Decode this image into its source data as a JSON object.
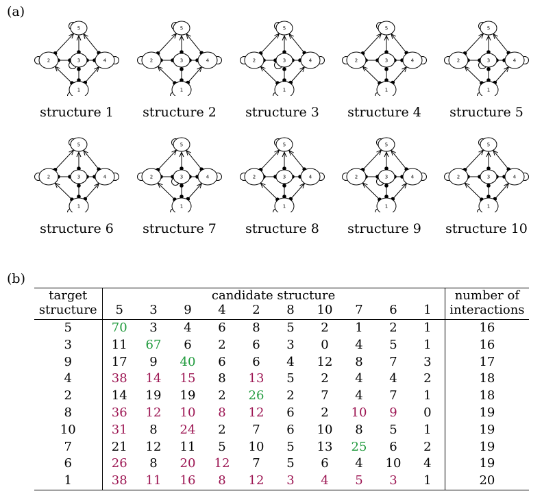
{
  "panel_labels": {
    "a": "(a)",
    "b": "(b)"
  },
  "structures": [
    {
      "caption": "structure 1",
      "extra": [
        "2-5",
        "3-4"
      ]
    },
    {
      "caption": "structure 2",
      "extra": [
        "3-4",
        "2-5"
      ]
    },
    {
      "caption": "structure 3",
      "extra": [
        "2-5",
        "3-4"
      ]
    },
    {
      "caption": "structure 4",
      "extra": [
        "2-5",
        "3-4"
      ]
    },
    {
      "caption": "structure 5",
      "extra": [
        "2-5",
        "3-4"
      ]
    },
    {
      "caption": "structure 6",
      "extra": [
        "2-5",
        "3-4"
      ]
    },
    {
      "caption": "structure 7",
      "extra": [
        "2-5",
        "3-4"
      ]
    },
    {
      "caption": "structure 8",
      "extra": [
        "2-5",
        "3-4"
      ]
    },
    {
      "caption": "structure 9",
      "extra": [
        "2-5",
        "3-4"
      ]
    },
    {
      "caption": "structure 10",
      "extra": [
        "2-5",
        "3-4"
      ]
    }
  ],
  "node_labels": [
    "1",
    "2",
    "3",
    "4",
    "5"
  ],
  "table": {
    "header_target": [
      "target",
      "structure"
    ],
    "header_candidate": "candidate structure",
    "header_interactions": [
      "number of",
      "interactions"
    ],
    "candidate_columns": [
      "5",
      "3",
      "9",
      "4",
      "2",
      "8",
      "10",
      "7",
      "6",
      "1"
    ],
    "colors": {
      "green": "#1f9a3c",
      "red": "#9c1552"
    },
    "rows": [
      {
        "target": "5",
        "values": [
          "70",
          "3",
          "4",
          "6",
          "8",
          "5",
          "2",
          "1",
          "2",
          "1"
        ],
        "colors": [
          "g",
          "",
          "",
          "",
          "",
          "",
          "",
          "",
          "",
          ""
        ],
        "interactions": "16"
      },
      {
        "target": "3",
        "values": [
          "11",
          "67",
          "6",
          "2",
          "6",
          "3",
          "0",
          "4",
          "5",
          "1"
        ],
        "colors": [
          "",
          "g",
          "",
          "",
          "",
          "",
          "",
          "",
          "",
          ""
        ],
        "interactions": "16"
      },
      {
        "target": "9",
        "values": [
          "17",
          "9",
          "40",
          "6",
          "6",
          "4",
          "12",
          "8",
          "7",
          "3"
        ],
        "colors": [
          "",
          "",
          "g",
          "",
          "",
          "",
          "",
          "",
          "",
          ""
        ],
        "interactions": "17"
      },
      {
        "target": "4",
        "values": [
          "38",
          "14",
          "15",
          "8",
          "13",
          "5",
          "2",
          "4",
          "4",
          "2"
        ],
        "colors": [
          "r",
          "r",
          "r",
          "",
          "r",
          "",
          "",
          "",
          "",
          ""
        ],
        "interactions": "18"
      },
      {
        "target": "2",
        "values": [
          "14",
          "19",
          "19",
          "2",
          "26",
          "2",
          "7",
          "4",
          "7",
          "1"
        ],
        "colors": [
          "",
          "",
          "",
          "",
          "g",
          "",
          "",
          "",
          "",
          ""
        ],
        "interactions": "18"
      },
      {
        "target": "8",
        "values": [
          "36",
          "12",
          "10",
          "8",
          "12",
          "6",
          "2",
          "10",
          "9",
          "0"
        ],
        "colors": [
          "r",
          "r",
          "r",
          "r",
          "r",
          "",
          "",
          "r",
          "r",
          ""
        ],
        "interactions": "19"
      },
      {
        "target": "10",
        "values": [
          "31",
          "8",
          "24",
          "2",
          "7",
          "6",
          "10",
          "8",
          "5",
          "1"
        ],
        "colors": [
          "r",
          "",
          "r",
          "",
          "",
          "",
          "",
          "",
          "",
          ""
        ],
        "interactions": "19"
      },
      {
        "target": "7",
        "values": [
          "21",
          "12",
          "11",
          "5",
          "10",
          "5",
          "13",
          "25",
          "6",
          "2"
        ],
        "colors": [
          "",
          "",
          "",
          "",
          "",
          "",
          "",
          "g",
          "",
          ""
        ],
        "interactions": "19"
      },
      {
        "target": "6",
        "values": [
          "26",
          "8",
          "20",
          "12",
          "7",
          "5",
          "6",
          "4",
          "10",
          "4"
        ],
        "colors": [
          "r",
          "",
          "r",
          "r",
          "",
          "",
          "",
          "",
          "",
          ""
        ],
        "interactions": "19"
      },
      {
        "target": "1",
        "values": [
          "38",
          "11",
          "16",
          "8",
          "12",
          "3",
          "4",
          "5",
          "3",
          "1"
        ],
        "colors": [
          "r",
          "r",
          "r",
          "r",
          "r",
          "r",
          "r",
          "r",
          "r",
          ""
        ],
        "interactions": "20"
      }
    ]
  }
}
